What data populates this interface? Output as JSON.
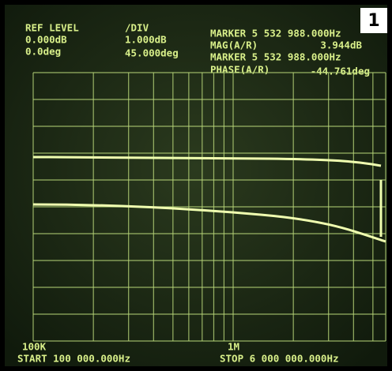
{
  "badge": "1",
  "header": {
    "ref_level": {
      "label": "REF LEVEL",
      "mag": "0.000dB",
      "phase": "0.0deg"
    },
    "div": {
      "label": "/DIV",
      "mag": "1.000dB",
      "phase": "45.000deg"
    },
    "marker_mag": {
      "label": "MARKER 5 532 988.000Hz",
      "name": "MAG(A/R)",
      "value": "3.944dB"
    },
    "marker_phase": {
      "label": "MARKER 5 532 988.000Hz",
      "name": "PHASE(A/R)",
      "value": "-44.761deg"
    }
  },
  "footer": {
    "left_label": "100K",
    "mid_label": "1M",
    "start": "START 100 000.000Hz",
    "stop": "STOP 6 000 000.000Hz"
  }
}
